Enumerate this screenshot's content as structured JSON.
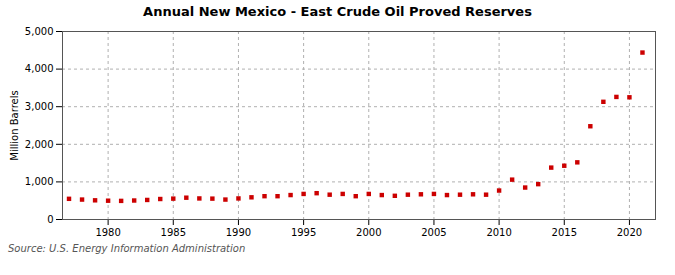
{
  "chart_data": {
    "type": "scatter",
    "title": "Annual New Mexico - East Crude Oil Proved Reserves",
    "ylabel": "Million Barrels",
    "source": "Source: U.S. Energy Information Administration",
    "x": [
      1977,
      1978,
      1979,
      1980,
      1981,
      1982,
      1983,
      1984,
      1985,
      1986,
      1987,
      1988,
      1989,
      1990,
      1991,
      1992,
      1993,
      1994,
      1995,
      1996,
      1997,
      1998,
      1999,
      2000,
      2001,
      2002,
      2003,
      2004,
      2005,
      2006,
      2007,
      2008,
      2009,
      2010,
      2011,
      2012,
      2013,
      2014,
      2015,
      2016,
      2017,
      2018,
      2019,
      2020,
      2021
    ],
    "values": [
      550,
      530,
      510,
      500,
      495,
      505,
      520,
      545,
      555,
      580,
      560,
      555,
      530,
      560,
      590,
      620,
      620,
      650,
      680,
      700,
      660,
      680,
      620,
      680,
      650,
      630,
      660,
      670,
      680,
      650,
      660,
      670,
      660,
      770,
      1060,
      850,
      940,
      1380,
      1430,
      1520,
      2480,
      3130,
      3260,
      3250,
      4440
    ],
    "color": "#cc0000",
    "marker": "square",
    "xlim": [
      1976.5,
      2022
    ],
    "xticks": [
      1980,
      1985,
      1990,
      1995,
      2000,
      2005,
      2010,
      2015,
      2020
    ],
    "ylim": [
      0,
      5000
    ],
    "yticks": [
      0,
      {
        "value": 1000,
        "label": "1,000"
      },
      {
        "value": 2000,
        "label": "2,000"
      },
      {
        "value": 3000,
        "label": "3,000"
      },
      {
        "value": 4000,
        "label": "4,000"
      },
      {
        "value": 5000,
        "label": "5,000"
      }
    ],
    "grid": true
  }
}
